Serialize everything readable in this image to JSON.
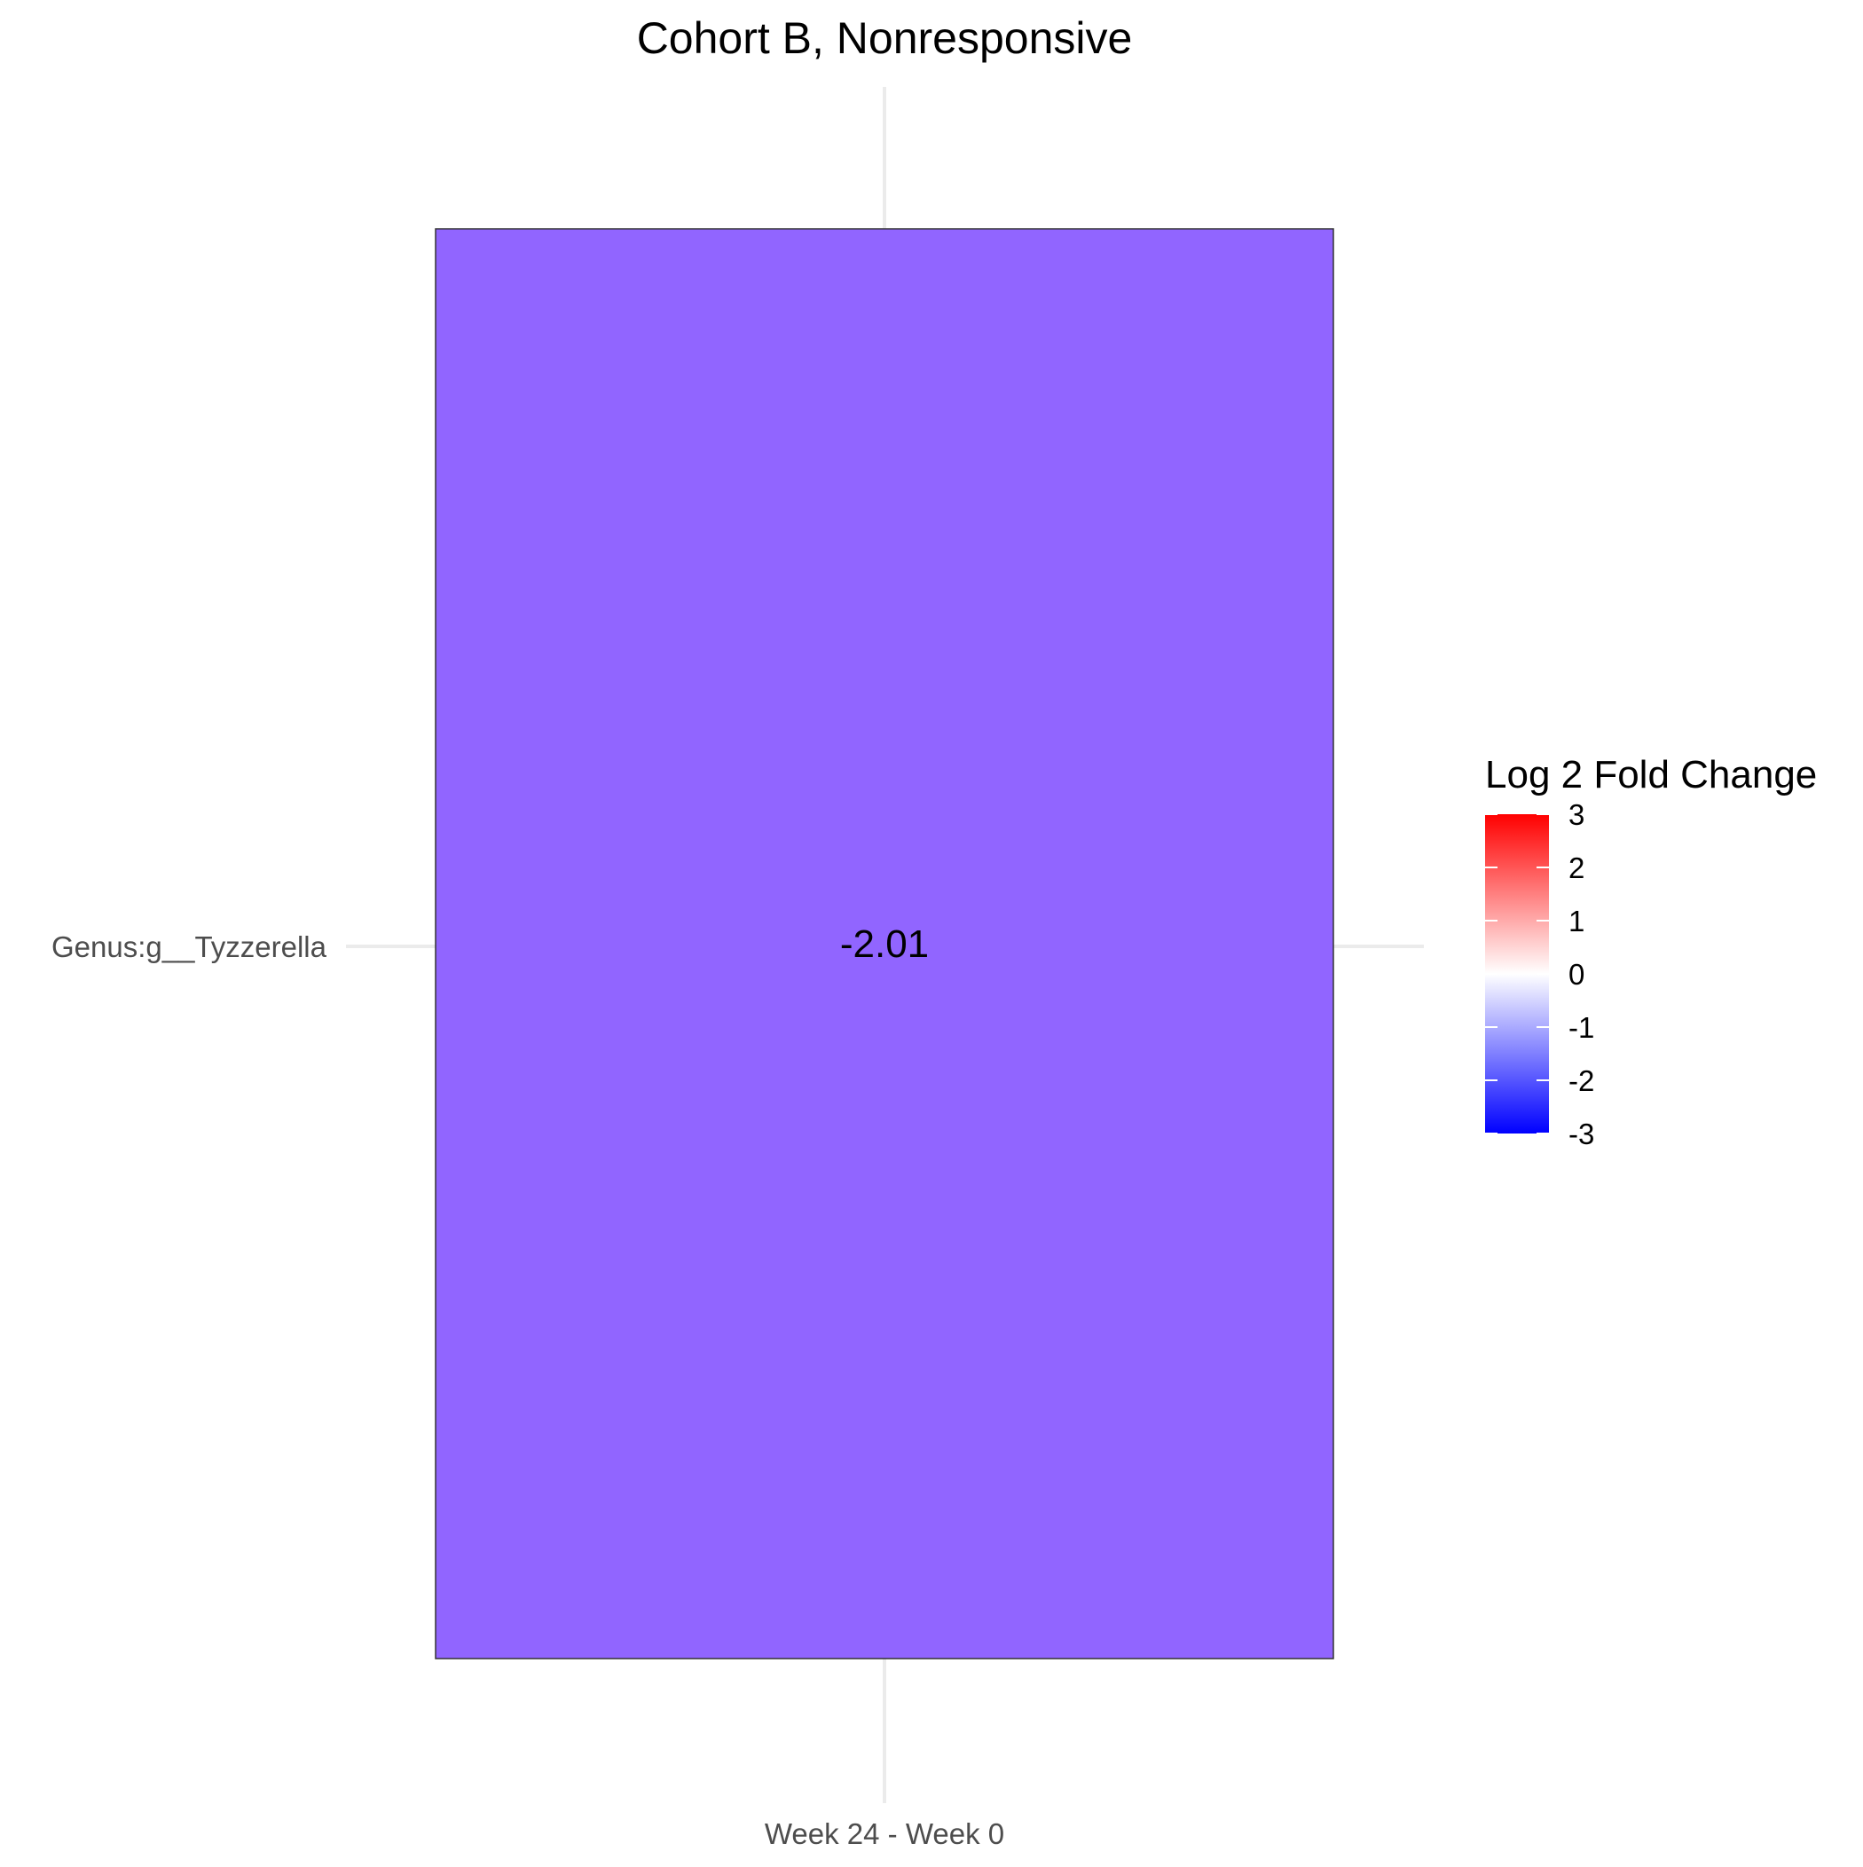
{
  "chart_data": {
    "type": "heatmap",
    "title": "Cohort B, Nonresponsive",
    "x_categories": [
      "Week 24 - Week 0"
    ],
    "y_categories": [
      "Genus:g__Tyzzerella"
    ],
    "cells": [
      {
        "x": "Week 24 - Week 0",
        "y": "Genus:g__Tyzzerella",
        "value": -2.01,
        "label": "-2.01",
        "color": "#9165ff"
      }
    ],
    "legend": {
      "title": "Log 2 Fold Change",
      "placement": "right",
      "limits": [
        -3,
        3
      ],
      "ticks": [
        3,
        2,
        1,
        0,
        -1,
        -2,
        -3
      ],
      "tick_labels": [
        "3",
        "2",
        "1",
        "0",
        "-1",
        "-2",
        "-3"
      ],
      "colors": {
        "low": "#0000ff",
        "mid": "#ffffff",
        "high": "#ff0000"
      }
    },
    "grid": true
  }
}
